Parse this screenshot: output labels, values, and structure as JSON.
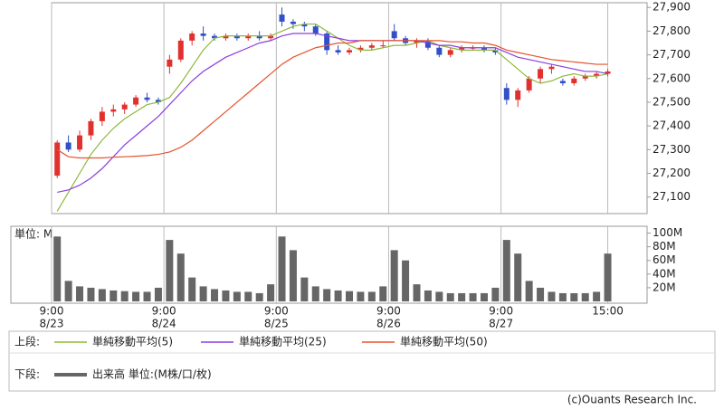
{
  "chart_data": [
    {
      "type": "candlestick",
      "ohlc": [
        [
          27190,
          27340,
          27180,
          27330
        ],
        [
          27330,
          27360,
          27290,
          27300
        ],
        [
          27300,
          27380,
          27290,
          27360
        ],
        [
          27360,
          27430,
          27340,
          27420
        ],
        [
          27420,
          27480,
          27400,
          27460
        ],
        [
          27460,
          27490,
          27440,
          27470
        ],
        [
          27470,
          27500,
          27450,
          27490
        ],
        [
          27490,
          27530,
          27480,
          27520
        ],
        [
          27520,
          27540,
          27500,
          27510
        ],
        [
          27510,
          27520,
          27490,
          27500
        ],
        [
          27650,
          27700,
          27620,
          27680
        ],
        [
          27680,
          27770,
          27670,
          27760
        ],
        [
          27760,
          27800,
          27740,
          27790
        ],
        [
          27790,
          27820,
          27760,
          27780
        ],
        [
          27780,
          27790,
          27760,
          27770
        ],
        [
          27770,
          27790,
          27760,
          27780
        ],
        [
          27780,
          27790,
          27760,
          27770
        ],
        [
          27770,
          27790,
          27760,
          27780
        ],
        [
          27780,
          27800,
          27760,
          27770
        ],
        [
          27770,
          27790,
          27760,
          27780
        ],
        [
          27870,
          27900,
          27820,
          27840
        ],
        [
          27840,
          27850,
          27810,
          27830
        ],
        [
          27830,
          27840,
          27800,
          27820
        ],
        [
          27820,
          27830,
          27780,
          27790
        ],
        [
          27790,
          27800,
          27700,
          27720
        ],
        [
          27720,
          27740,
          27700,
          27710
        ],
        [
          27710,
          27730,
          27700,
          27720
        ],
        [
          27720,
          27740,
          27710,
          27730
        ],
        [
          27730,
          27750,
          27720,
          27740
        ],
        [
          27740,
          27760,
          27730,
          27740
        ],
        [
          27800,
          27830,
          27760,
          27770
        ],
        [
          27770,
          27780,
          27740,
          27750
        ],
        [
          27750,
          27770,
          27730,
          27760
        ],
        [
          27760,
          27770,
          27720,
          27730
        ],
        [
          27730,
          27740,
          27690,
          27700
        ],
        [
          27700,
          27730,
          27690,
          27720
        ],
        [
          27720,
          27740,
          27710,
          27730
        ],
        [
          27730,
          27740,
          27720,
          27730
        ],
        [
          27730,
          27740,
          27710,
          27720
        ],
        [
          27720,
          27730,
          27700,
          27710
        ],
        [
          27560,
          27580,
          27490,
          27510
        ],
        [
          27510,
          27560,
          27480,
          27550
        ],
        [
          27550,
          27610,
          27540,
          27600
        ],
        [
          27600,
          27650,
          27580,
          27640
        ],
        [
          27640,
          27660,
          27620,
          27650
        ],
        [
          27590,
          27600,
          27570,
          27580
        ],
        [
          27580,
          27610,
          27570,
          27600
        ],
        [
          27600,
          27620,
          27590,
          27610
        ],
        [
          27610,
          27630,
          27600,
          27620
        ],
        [
          27620,
          27640,
          27610,
          27630
        ]
      ],
      "up_color": "#e0312f",
      "down_color": "#3150c8",
      "legend_title": "上段:",
      "series": [
        {
          "name": "単純移動平均(5)",
          "color": "#8db83a",
          "values": [
            27040,
            27120,
            27200,
            27280,
            27340,
            27390,
            27430,
            27460,
            27490,
            27500,
            27520,
            27580,
            27650,
            27720,
            27770,
            27780,
            27780,
            27780,
            27780,
            27780,
            27800,
            27820,
            27830,
            27830,
            27800,
            27770,
            27740,
            27720,
            27720,
            27730,
            27740,
            27740,
            27750,
            27760,
            27740,
            27730,
            27720,
            27720,
            27720,
            27720,
            27680,
            27640,
            27600,
            27580,
            27590,
            27610,
            27620,
            27610,
            27610,
            27620
          ]
        },
        {
          "name": "単純移動平均(25)",
          "color": "#8a3ee0",
          "values": [
            27120,
            27130,
            27150,
            27180,
            27220,
            27270,
            27320,
            27360,
            27400,
            27440,
            27490,
            27540,
            27590,
            27630,
            27660,
            27690,
            27710,
            27730,
            27750,
            27760,
            27780,
            27790,
            27790,
            27790,
            27780,
            27770,
            27760,
            27760,
            27760,
            27760,
            27760,
            27760,
            27760,
            27750,
            27740,
            27740,
            27730,
            27730,
            27730,
            27730,
            27710,
            27690,
            27680,
            27670,
            27660,
            27650,
            27640,
            27630,
            27630,
            27620
          ]
        },
        {
          "name": "単純移動平均(50)",
          "color": "#e5532e",
          "values": [
            27300,
            27270,
            27265,
            27265,
            27265,
            27268,
            27270,
            27272,
            27275,
            27280,
            27290,
            27310,
            27340,
            27380,
            27420,
            27460,
            27500,
            27540,
            27580,
            27620,
            27660,
            27690,
            27710,
            27730,
            27740,
            27750,
            27750,
            27760,
            27760,
            27760,
            27760,
            27760,
            27760,
            27760,
            27760,
            27755,
            27755,
            27750,
            27750,
            27740,
            27720,
            27710,
            27700,
            27690,
            27680,
            27675,
            27670,
            27665,
            27660,
            27660
          ]
        }
      ],
      "ylim": [
        27030,
        27920
      ],
      "yticks": [
        {
          "value": 27100,
          "label": "27,100"
        },
        {
          "value": 27200,
          "label": "27,200"
        },
        {
          "value": 27300,
          "label": "27,300"
        },
        {
          "value": 27400,
          "label": "27,400"
        },
        {
          "value": 27500,
          "label": "27,500"
        },
        {
          "value": 27600,
          "label": "27,600"
        },
        {
          "value": 27700,
          "label": "27,700"
        },
        {
          "value": 27800,
          "label": "27,800"
        },
        {
          "value": 27900,
          "label": "27,900"
        }
      ],
      "xlim": [
        0,
        53
      ],
      "xticks": [
        0,
        10,
        20,
        30,
        40,
        49.5
      ],
      "grid": "vertical"
    },
    {
      "type": "bar",
      "name": "出来高 単位:(M株/口/枚)",
      "legend_title": "下段:",
      "unit_label": "単位: M",
      "color": "#666666",
      "values": [
        95,
        30,
        22,
        20,
        18,
        16,
        15,
        14,
        14,
        20,
        90,
        70,
        35,
        22,
        18,
        16,
        14,
        14,
        12,
        25,
        95,
        75,
        35,
        22,
        18,
        16,
        15,
        14,
        14,
        22,
        75,
        60,
        25,
        16,
        14,
        12,
        12,
        12,
        12,
        20,
        90,
        70,
        30,
        20,
        14,
        12,
        12,
        12,
        14,
        70
      ],
      "ylim": [
        0,
        110
      ],
      "yticks": [
        {
          "value": 20,
          "label": "20M"
        },
        {
          "value": 40,
          "label": "40M"
        },
        {
          "value": 60,
          "label": "60M"
        },
        {
          "value": 80,
          "label": "80M"
        },
        {
          "value": 100,
          "label": "100M"
        }
      ],
      "xlim": [
        0,
        53
      ],
      "xticks": [
        {
          "value": 0,
          "label": "9:00",
          "date": "8/23"
        },
        {
          "value": 10,
          "label": "9:00",
          "date": "8/24"
        },
        {
          "value": 20,
          "label": "9:00",
          "date": "8/25"
        },
        {
          "value": 30,
          "label": "9:00",
          "date": "8/26"
        },
        {
          "value": 40,
          "label": "9:00",
          "date": "8/27"
        },
        {
          "value": 49.5,
          "label": "15:00"
        }
      ],
      "grid": "vertical"
    }
  ],
  "credit": "(c)Ouants Research Inc."
}
